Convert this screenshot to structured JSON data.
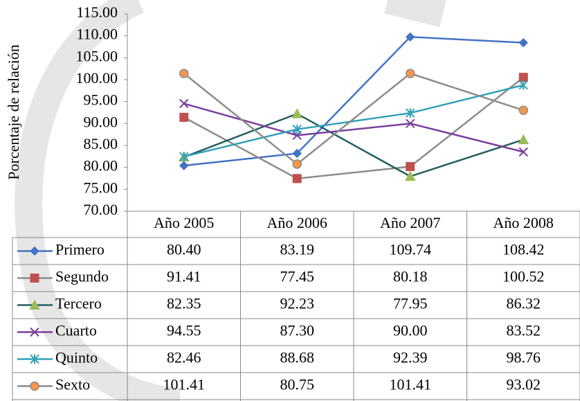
{
  "chart_data": {
    "type": "line",
    "y_axis_label": "Porcentaje de relación",
    "categories": [
      "Año 2005",
      "Año 2006",
      "Año 2007",
      "Año 2008"
    ],
    "ylim": [
      70,
      115
    ],
    "yticks": [
      {
        "value": 70,
        "label": "70.00"
      },
      {
        "value": 75,
        "label": "75.00"
      },
      {
        "value": 80,
        "label": "80.00"
      },
      {
        "value": 85,
        "label": "85.00"
      },
      {
        "value": 90,
        "label": "90.00"
      },
      {
        "value": 95,
        "label": "95.00"
      },
      {
        "value": 100,
        "label": "100.00"
      },
      {
        "value": 105,
        "label": "105.00"
      },
      {
        "value": 110,
        "label": "110.00"
      },
      {
        "value": 115,
        "label": "115.00"
      }
    ],
    "series": [
      {
        "name": "Primero",
        "color": "#4472c4",
        "marker": "diamond",
        "marker_color": "#4472c4",
        "values": [
          80.4,
          83.19,
          109.74,
          108.42
        ],
        "value_labels": [
          "80.40",
          "83.19",
          "109.74",
          "108.42"
        ]
      },
      {
        "name": "Segundo",
        "color": "#8c8c8c",
        "marker": "square",
        "marker_color": "#c0504d",
        "values": [
          91.41,
          77.45,
          80.18,
          100.52
        ],
        "value_labels": [
          "91.41",
          "77.45",
          "80.18",
          "100.52"
        ]
      },
      {
        "name": "Tercero",
        "color": "#215f5f",
        "marker": "triangle",
        "marker_color": "#9bbb59",
        "values": [
          82.35,
          92.23,
          77.95,
          86.32
        ],
        "value_labels": [
          "82.35",
          "92.23",
          "77.95",
          "86.32"
        ]
      },
      {
        "name": "Cuarto",
        "color": "#7a3f9d",
        "marker": "x",
        "marker_color": "#7a3f9d",
        "values": [
          94.55,
          87.3,
          90.0,
          83.52
        ],
        "value_labels": [
          "94.55",
          "87.30",
          "90.00",
          "83.52"
        ]
      },
      {
        "name": "Quinto",
        "color": "#31a0b8",
        "marker": "star",
        "marker_color": "#31a0b8",
        "values": [
          82.46,
          88.68,
          92.39,
          98.76
        ],
        "value_labels": [
          "82.46",
          "88.68",
          "92.39",
          "98.76"
        ]
      },
      {
        "name": "Sexto",
        "color": "#8c8c8c",
        "marker": "circle",
        "marker_color": "#f79646",
        "values": [
          101.41,
          80.75,
          101.41,
          93.02
        ],
        "value_labels": [
          "101.41",
          "80.75",
          "101.41",
          "93.02"
        ]
      }
    ]
  }
}
